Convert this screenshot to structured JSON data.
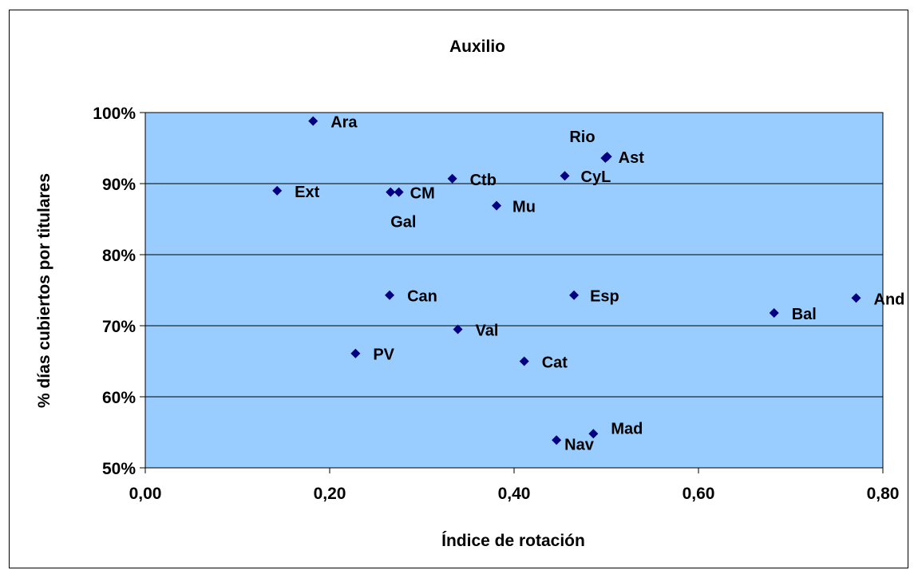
{
  "chart_data": {
    "type": "scatter",
    "title": "Auxilio",
    "xlabel": "Índice de rotación",
    "ylabel": "% días cubiertos por titulares",
    "xlim": [
      0,
      0.8
    ],
    "ylim": [
      0.5,
      1.0
    ],
    "x_ticks": [
      0,
      0.2,
      0.4,
      0.6,
      0.8
    ],
    "x_tick_labels": [
      "0,00",
      "0,20",
      "0,40",
      "0,60",
      "0,80"
    ],
    "y_ticks": [
      0.5,
      0.6,
      0.7,
      0.8,
      0.9,
      1.0
    ],
    "y_tick_labels": [
      "50%",
      "60%",
      "70%",
      "80%",
      "90%",
      "100%"
    ],
    "grid": "horizontal",
    "legend": "none",
    "colors": {
      "plot_bg": "#99ccff",
      "marker": "#000080",
      "grid": "#000000"
    },
    "points": [
      {
        "label": "Ara",
        "x": 0.182,
        "y": 0.988
      },
      {
        "label": "Rio",
        "x": 0.499,
        "y": 0.936
      },
      {
        "label": "Ast",
        "x": 0.501,
        "y": 0.938
      },
      {
        "label": "Ctb",
        "x": 0.333,
        "y": 0.907
      },
      {
        "label": "CyL",
        "x": 0.455,
        "y": 0.911
      },
      {
        "label": "Ext",
        "x": 0.143,
        "y": 0.89
      },
      {
        "label": "Gal",
        "x": 0.266,
        "y": 0.888
      },
      {
        "label": "CM",
        "x": 0.275,
        "y": 0.888
      },
      {
        "label": "Mu",
        "x": 0.381,
        "y": 0.869
      },
      {
        "label": "Can",
        "x": 0.265,
        "y": 0.743
      },
      {
        "label": "Esp",
        "x": 0.465,
        "y": 0.743
      },
      {
        "label": "And",
        "x": 0.771,
        "y": 0.739
      },
      {
        "label": "Bal",
        "x": 0.682,
        "y": 0.718
      },
      {
        "label": "Val",
        "x": 0.339,
        "y": 0.695
      },
      {
        "label": "PV",
        "x": 0.228,
        "y": 0.661
      },
      {
        "label": "Cat",
        "x": 0.411,
        "y": 0.65
      },
      {
        "label": "Mad",
        "x": 0.486,
        "y": 0.548
      },
      {
        "label": "Nav",
        "x": 0.446,
        "y": 0.539
      }
    ]
  }
}
